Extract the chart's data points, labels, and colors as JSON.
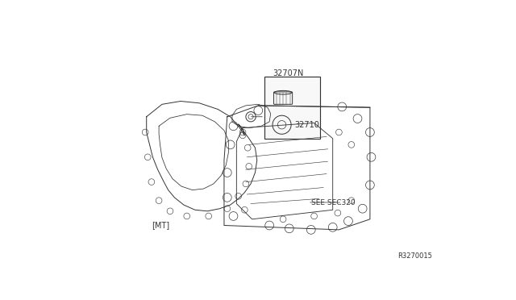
{
  "bg_color": "#ffffff",
  "line_color": "#333333",
  "lw": 0.7,
  "label_32707N": "32707N",
  "label_32710": "32710",
  "label_MT": "[MT]",
  "label_see_sec": "SEE SEC320",
  "label_ref": "R3270015",
  "fs_main": 7,
  "fs_ref": 6
}
